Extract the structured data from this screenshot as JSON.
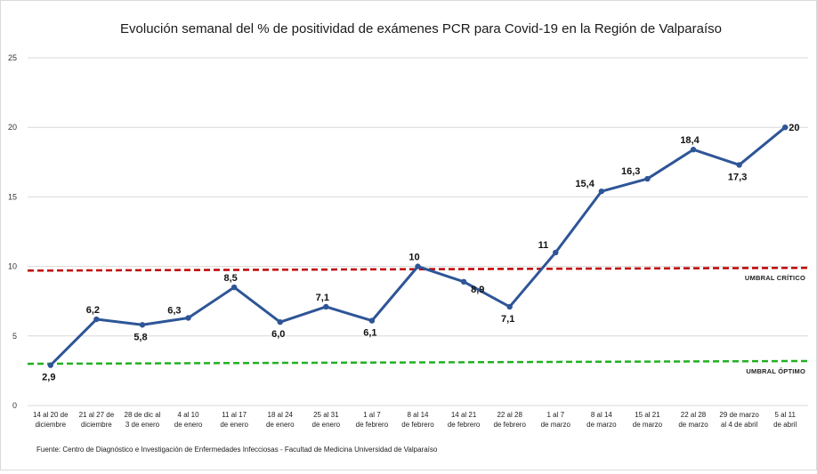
{
  "chart_data": {
    "type": "line",
    "title": "Evolución semanal del % de positividad de exámenes PCR para Covid-19 en la Región de Valparaíso",
    "xlabel": "",
    "ylabel": "",
    "ylim": [
      0,
      25
    ],
    "yticks": [
      "0",
      "5",
      "10",
      "15",
      "20",
      "25"
    ],
    "grid": true,
    "legend": "none",
    "categories": [
      [
        "14 al 20 de",
        "diciembre"
      ],
      [
        "21 al 27 de",
        "diciembre"
      ],
      [
        "28 de dic al",
        "3 de enero"
      ],
      [
        "4 al 10",
        "de enero"
      ],
      [
        "11 al 17",
        "de enero"
      ],
      [
        "18 al 24",
        "de enero"
      ],
      [
        "25 al 31",
        "de enero"
      ],
      [
        "1 al 7",
        "de febrero"
      ],
      [
        "8 al 14",
        "de febrero"
      ],
      [
        "14 al 21",
        "de febrero"
      ],
      [
        "22 al 28",
        "de febrero"
      ],
      [
        "1 al 7",
        "de marzo"
      ],
      [
        "8 al 14",
        "de marzo"
      ],
      [
        "15 al 21",
        "de marzo"
      ],
      [
        "22 al 28",
        "de marzo"
      ],
      [
        "29 de marzo",
        "al 4 de abril"
      ],
      [
        "5 al 11",
        "de abril"
      ]
    ],
    "series": [
      {
        "name": "",
        "color": "#2e5597",
        "values": [
          2.9,
          6.2,
          5.8,
          6.3,
          8.5,
          6.0,
          7.1,
          6.1,
          10,
          8.9,
          7.1,
          11,
          15.4,
          16.3,
          18.4,
          17.3,
          20
        ],
        "labels": [
          "2,9",
          "6,2",
          "5,8",
          "6,3",
          "8,5",
          "6,0",
          "7,1",
          "6,1",
          "10",
          "8,9",
          "7,1",
          "11",
          "15,4",
          "16,3",
          "18,4",
          "17,3",
          "20"
        ]
      }
    ],
    "reference_lines": [
      {
        "label": "UMBRAL CRÍTICO",
        "value_start": 9.7,
        "value_end": 9.9,
        "color": "#c00000"
      },
      {
        "label": "UMBRAL ÓPTIMO",
        "value_start": 3.0,
        "value_end": 3.2,
        "color": "#22b022"
      }
    ],
    "source": "Fuente: Centro de Diagnóstico e Investigación de Enfermedades Infecciosas - Facultad de Medicina Universidad de Valparaíso"
  }
}
